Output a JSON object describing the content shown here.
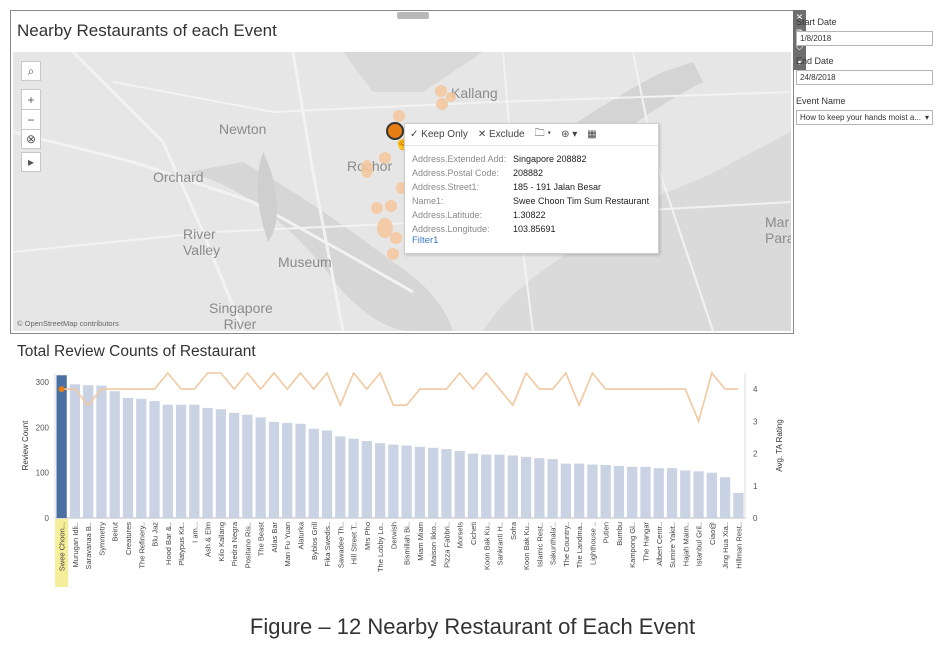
{
  "map": {
    "title": "Nearby Restaurants of each Event",
    "attribution": "© OpenStreetMap contributors",
    "places": [
      "Kallang",
      "Newton",
      "Rochor",
      "Orchard",
      "River Valley",
      "Museum",
      "Singapore River",
      "Mar Para"
    ],
    "controls": [
      "⌕",
      "+",
      "−",
      "⊗",
      "▸"
    ]
  },
  "tooltip": {
    "actions": [
      "✓ Keep Only",
      "✕ Exclude",
      "🗀 ▾",
      "⊛ ▾",
      "▦"
    ],
    "rows": [
      {
        "key": "Address.Extended Add:",
        "value": "Singapore 208882"
      },
      {
        "key": "Address.Postal Code:",
        "value": "208882"
      },
      {
        "key": "Address.Street1:",
        "value": "185 - 191 Jalan Besar"
      },
      {
        "key": "Name1:",
        "value": "Swee Choon Tim Sum Restaurant"
      },
      {
        "key": "Address.Latitude:",
        "value": "1.30822"
      },
      {
        "key": "Address.Longitude:",
        "value": "103.85691"
      }
    ],
    "link": "Filter1"
  },
  "filters": {
    "start_label": "Start Date",
    "start_value": "1/8/2018",
    "end_label": "End Date",
    "end_value": "24/8/2018",
    "event_label": "Event Name",
    "event_value": "How to keep your hands moist a..."
  },
  "bar_title": "Total Review Counts of Restaurant",
  "caption": "Figure – 12 Nearby Restaurant of Each Event",
  "chart_data": {
    "type": "bar",
    "left_axis_title": "Review Count",
    "right_axis_title": "Avg. TA Rating",
    "y_ticks": [
      0,
      100,
      200,
      300
    ],
    "y2_ticks": [
      0,
      1,
      2,
      3,
      4
    ],
    "ylim": [
      0,
      320
    ],
    "y2lim": [
      0,
      4.5
    ],
    "colors": {
      "highlight": "#4a6fa1",
      "bar": "#c9d3e3",
      "line": "#f2c8a0",
      "label_highlight": "#f5ee9a"
    },
    "categories": [
      "Swee Choon...",
      "Murugan Idli..",
      "Saravanaa B..",
      "Symmetry",
      "Beirut",
      "Creatures",
      "The Refinery..",
      "Blu Jaz",
      "Hood Bar &..",
      "Platypus Kit..",
      "I am...",
      "Ash & Elm",
      "Kilo Kallang",
      "Piedra Negra",
      "Positano Ris..",
      "The Beast",
      "Atlas Bar",
      "Man Fu Yuan",
      "Alaturka",
      "Byblos Grill",
      "Fika Swedis..",
      "Sawadee Th..",
      "Hill Street T..",
      "Mrs Pho",
      "The Lobby Lo..",
      "Derwish",
      "Bismillah Bi..",
      "Miam Miam",
      "Maison Ikko..",
      "Pizza Fabbri..",
      "Morsels",
      "Cicheti",
      "Koon Bak Ku..",
      "Sankranti H..",
      "Sofra",
      "Koon Bak Ku..",
      "Islamic Rest..",
      "Sakunthala'..",
      "The Country..",
      "The Landma..",
      "Lighthouse ..",
      "Putien",
      "Bumbu",
      "Kampong Gl..",
      "The Hangar",
      "Albert Centr..",
      "Sumire Yakit..",
      "Hajah Maim..",
      "Istanbul Gril..",
      "Ciao@",
      "Jing Hua Xia..",
      "Hillman Rest.."
    ],
    "values": [
      315,
      295,
      293,
      292,
      280,
      265,
      263,
      258,
      250,
      250,
      250,
      243,
      240,
      232,
      228,
      222,
      212,
      210,
      208,
      197,
      193,
      180,
      175,
      170,
      165,
      162,
      160,
      157,
      155,
      152,
      148,
      142,
      140,
      140,
      138,
      135,
      132,
      130,
      120,
      120,
      118,
      117,
      115,
      113,
      113,
      110,
      110,
      105,
      103,
      100,
      90,
      55
    ],
    "ratings": [
      4,
      4,
      3.5,
      4,
      4,
      4,
      4,
      4,
      4.5,
      4,
      4,
      4.5,
      4.5,
      4,
      4.5,
      4,
      4.5,
      4,
      4.5,
      4,
      4.5,
      3.5,
      4.5,
      4,
      4.5,
      3.5,
      3.5,
      4,
      4,
      4,
      4.5,
      4,
      4.5,
      4,
      3.5,
      4.5,
      4,
      4,
      4.5,
      3.5,
      4.5,
      4,
      4,
      4,
      4,
      4,
      4,
      4,
      3,
      4.5,
      4,
      4
    ]
  }
}
